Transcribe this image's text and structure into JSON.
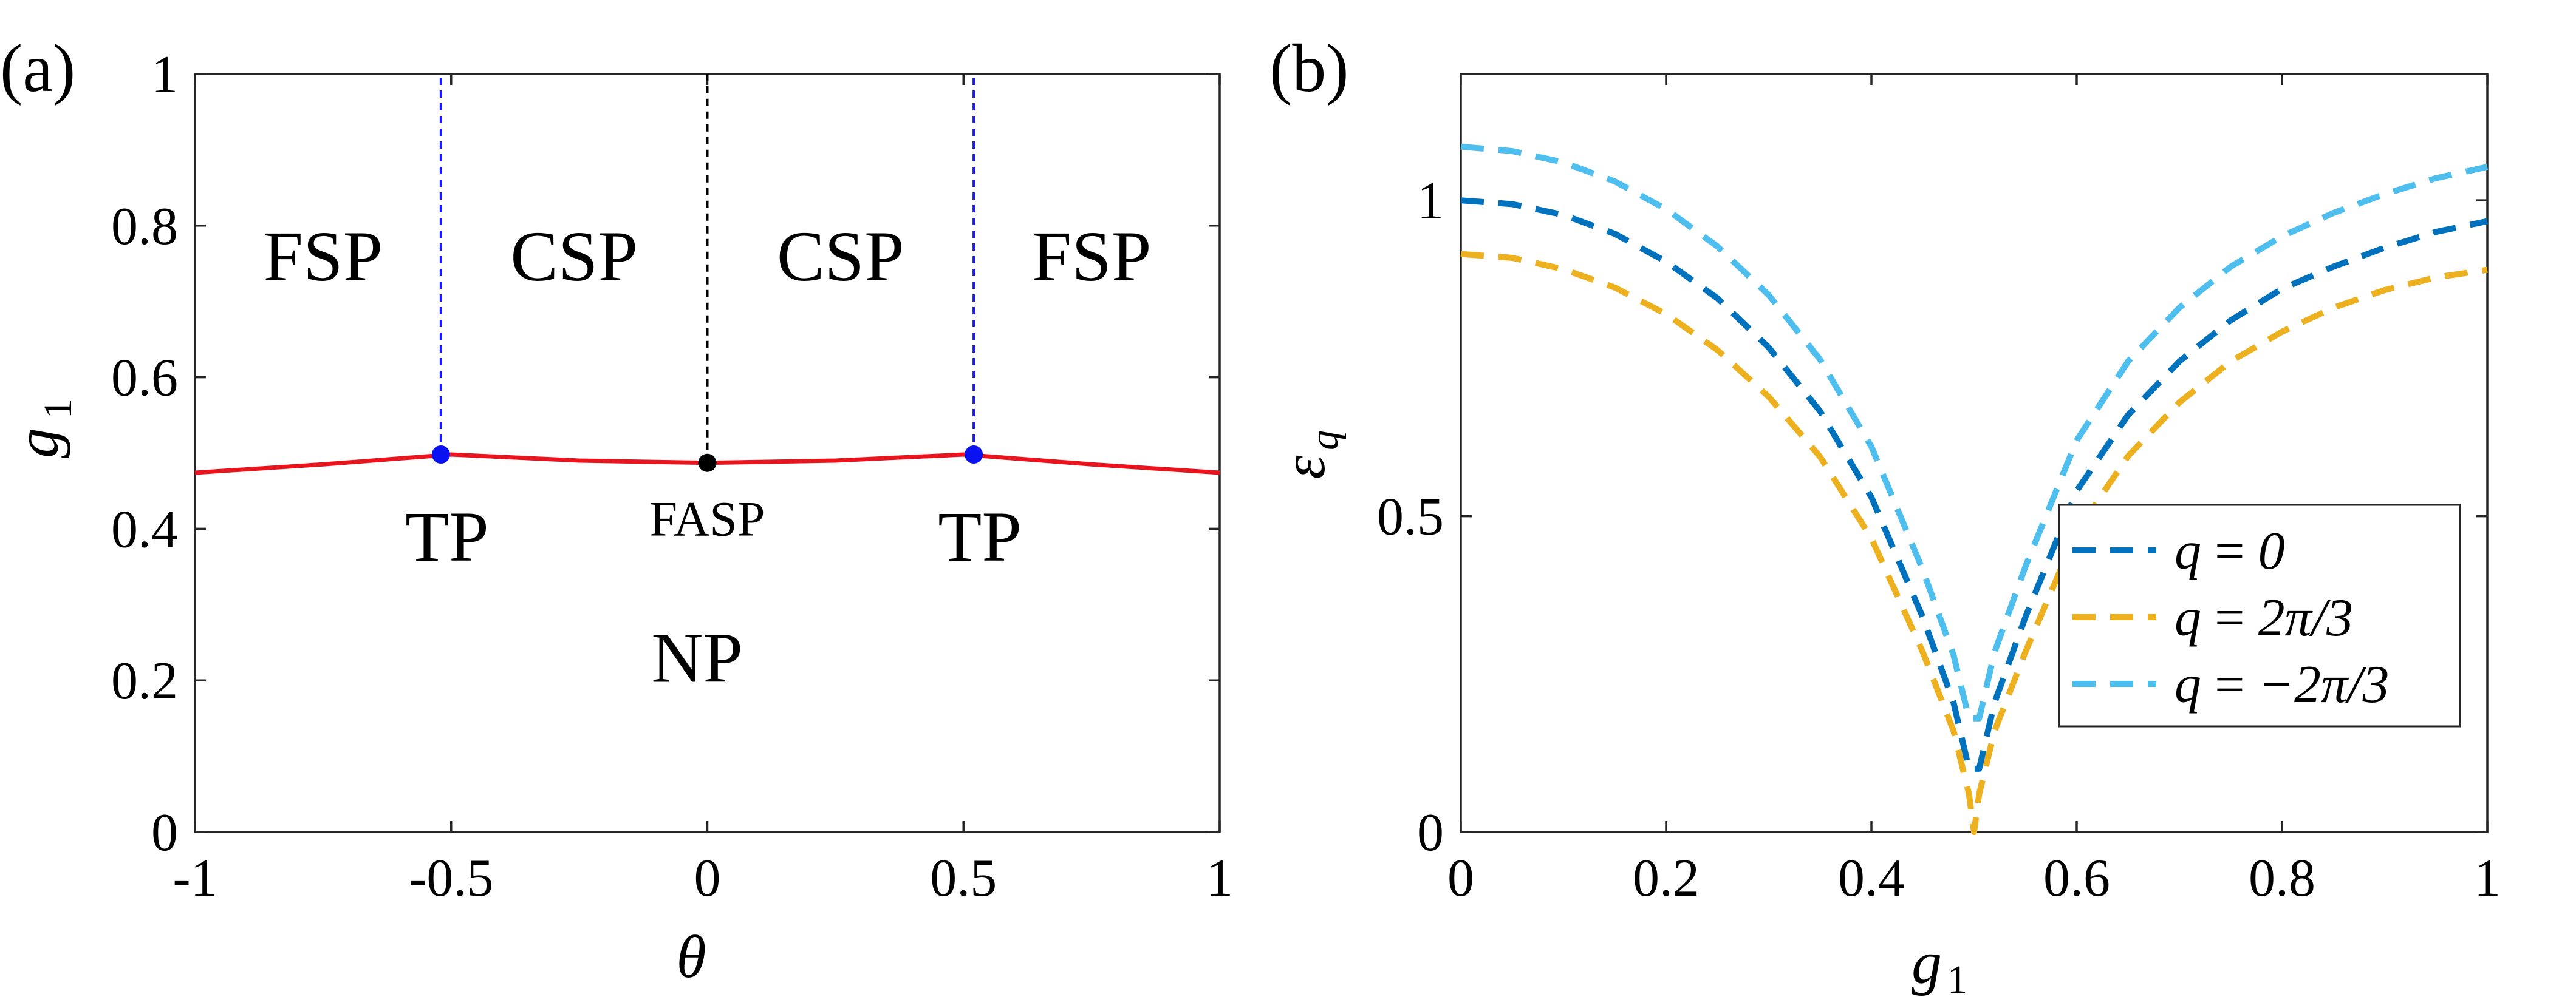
{
  "chart_data": [
    {
      "panel": "(a)",
      "type": "line",
      "xlabel": "θ",
      "ylabel": "g",
      "ylabel_sub": "1",
      "xlim": [
        -1,
        1
      ],
      "ylim": [
        0,
        1
      ],
      "xticks": [
        -1,
        -0.5,
        0,
        0.5,
        1
      ],
      "xtick_labels": [
        "-1",
        "-0.5",
        "0",
        "0.5",
        "1"
      ],
      "yticks": [
        0,
        0.2,
        0.4,
        0.6,
        0.8,
        1
      ],
      "ytick_labels": [
        "0",
        "0.2",
        "0.4",
        "0.6",
        "0.8",
        "1"
      ],
      "boundary": {
        "color": "#e8141e",
        "x": [
          -1,
          -0.75,
          -0.5,
          -0.25,
          0,
          0.25,
          0.5,
          0.75,
          1
        ],
        "y": [
          0.474,
          0.485,
          0.498,
          0.49,
          0.487,
          0.49,
          0.498,
          0.485,
          0.474
        ]
      },
      "vertical_lines": [
        {
          "x": -0.52,
          "y_from": 0.498,
          "y_to": 1,
          "color": "#1a1aff"
        },
        {
          "x": 0,
          "y_from": 0.487,
          "y_to": 1,
          "color": "#000000"
        },
        {
          "x": 0.52,
          "y_from": 0.498,
          "y_to": 1,
          "color": "#1a1aff"
        }
      ],
      "points": [
        {
          "x": -0.52,
          "y": 0.498,
          "color": "#0b12f0",
          "label": "TP",
          "label_size": "big"
        },
        {
          "x": 0,
          "y": 0.487,
          "color": "#000000",
          "label": "FASP",
          "label_size": "small"
        },
        {
          "x": 0.52,
          "y": 0.498,
          "color": "#0b12f0",
          "label": "TP",
          "label_size": "big"
        }
      ],
      "regions": [
        {
          "label": "FSP",
          "x": -0.75,
          "y": 0.76
        },
        {
          "label": "CSP",
          "x": -0.26,
          "y": 0.76
        },
        {
          "label": "CSP",
          "x": 0.26,
          "y": 0.76
        },
        {
          "label": "FSP",
          "x": 0.75,
          "y": 0.76
        },
        {
          "label": "NP",
          "x": -0.02,
          "y": 0.23
        }
      ]
    },
    {
      "panel": "(b)",
      "type": "line",
      "xlabel": "g",
      "xlabel_sub": "1",
      "ylabel": "ε",
      "ylabel_sub": "q",
      "xlim": [
        0,
        1
      ],
      "ylim": [
        0,
        1.2
      ],
      "xticks": [
        0,
        0.2,
        0.4,
        0.6,
        0.8,
        1
      ],
      "xtick_labels": [
        "0",
        "0.2",
        "0.4",
        "0.6",
        "0.8",
        "1"
      ],
      "yticks": [
        0,
        0.5,
        1
      ],
      "ytick_labels": [
        "0",
        "0.5",
        "1"
      ],
      "legend_position": "lower-right",
      "series": [
        {
          "name": "q = 0",
          "legend": {
            "lhs": "q",
            "rhs": "0"
          },
          "color": "#0072bd",
          "x": [
            0,
            0.05,
            0.1,
            0.15,
            0.2,
            0.25,
            0.3,
            0.35,
            0.4,
            0.45,
            0.48,
            0.495,
            0.505,
            0.52,
            0.55,
            0.6,
            0.65,
            0.7,
            0.75,
            0.8,
            0.85,
            0.9,
            0.95,
            1.0
          ],
          "values": [
            1.0,
            0.994,
            0.977,
            0.947,
            0.903,
            0.845,
            0.767,
            0.666,
            0.53,
            0.34,
            0.205,
            0.1,
            0.1,
            0.205,
            0.34,
            0.54,
            0.66,
            0.745,
            0.81,
            0.86,
            0.895,
            0.925,
            0.95,
            0.967
          ]
        },
        {
          "name": "q = 2π/3",
          "legend": {
            "lhs": "q",
            "rhs": "2π/3"
          },
          "color": "#edb120",
          "x": [
            0,
            0.05,
            0.1,
            0.15,
            0.2,
            0.25,
            0.3,
            0.35,
            0.4,
            0.45,
            0.48,
            0.495,
            0.5,
            0.505,
            0.52,
            0.55,
            0.6,
            0.65,
            0.7,
            0.75,
            0.8,
            0.85,
            0.9,
            0.95,
            1.0
          ],
          "values": [
            0.915,
            0.909,
            0.891,
            0.862,
            0.82,
            0.763,
            0.689,
            0.594,
            0.465,
            0.285,
            0.16,
            0.06,
            0.0,
            0.06,
            0.16,
            0.285,
            0.475,
            0.595,
            0.68,
            0.745,
            0.792,
            0.83,
            0.858,
            0.878,
            0.89
          ]
        },
        {
          "name": "q = −2π/3",
          "legend": {
            "lhs": "q",
            "rhs": "−2π/3"
          },
          "color": "#4dbeee",
          "x": [
            0,
            0.05,
            0.1,
            0.15,
            0.2,
            0.25,
            0.3,
            0.35,
            0.4,
            0.45,
            0.48,
            0.495,
            0.505,
            0.52,
            0.55,
            0.6,
            0.65,
            0.7,
            0.75,
            0.8,
            0.85,
            0.9,
            0.95,
            1.0
          ],
          "values": [
            1.085,
            1.078,
            1.06,
            1.03,
            0.986,
            0.927,
            0.85,
            0.748,
            0.61,
            0.415,
            0.28,
            0.18,
            0.18,
            0.285,
            0.42,
            0.62,
            0.745,
            0.83,
            0.895,
            0.943,
            0.98,
            1.01,
            1.035,
            1.053
          ]
        }
      ]
    }
  ]
}
